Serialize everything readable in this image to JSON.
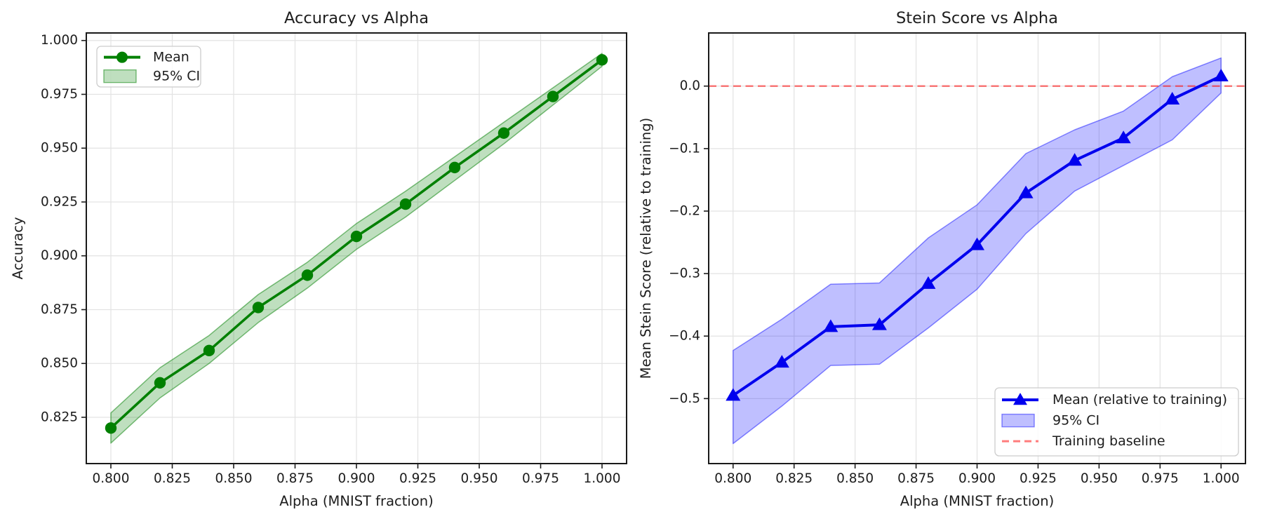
{
  "figure": {
    "background": "#ffffff",
    "description": "Two side-by-side matplotlib line charts with confidence bands"
  },
  "chart_data": [
    {
      "type": "line",
      "title": "Accuracy vs Alpha",
      "xlabel": "Alpha (MNIST fraction)",
      "ylabel": "Accuracy",
      "xlim": [
        0.79,
        1.01
      ],
      "ylim": [
        0.8035,
        1.0035
      ],
      "grid": true,
      "x": [
        0.8,
        0.82,
        0.84,
        0.86,
        0.88,
        0.9,
        0.92,
        0.94,
        0.96,
        0.98,
        1.0
      ],
      "series": [
        {
          "name": "Mean",
          "marker": "circle",
          "values": [
            0.82,
            0.841,
            0.856,
            0.876,
            0.891,
            0.909,
            0.924,
            0.941,
            0.957,
            0.974,
            0.991
          ]
        }
      ],
      "ci": {
        "name": "95% CI",
        "upper": [
          0.827,
          0.848,
          0.863,
          0.882,
          0.897,
          0.915,
          0.93,
          0.946,
          0.962,
          0.978,
          0.994
        ],
        "lower": [
          0.813,
          0.834,
          0.85,
          0.869,
          0.885,
          0.903,
          0.918,
          0.935,
          0.952,
          0.97,
          0.988
        ]
      },
      "xticks": {
        "values": [
          0.8,
          0.825,
          0.85,
          0.875,
          0.9,
          0.925,
          0.95,
          0.975,
          1.0
        ],
        "labels": [
          "0.800",
          "0.825",
          "0.850",
          "0.875",
          "0.900",
          "0.925",
          "0.950",
          "0.975",
          "1.000"
        ]
      },
      "yticks": {
        "values": [
          0.825,
          0.85,
          0.875,
          0.9,
          0.925,
          0.95,
          0.975,
          1.0
        ],
        "labels": [
          "0.825",
          "0.850",
          "0.875",
          "0.900",
          "0.925",
          "0.950",
          "0.975",
          "1.000"
        ]
      },
      "legend": {
        "position": "upper-left",
        "items": [
          {
            "type": "line-marker",
            "label": "Mean"
          },
          {
            "type": "patch",
            "label": "95% CI"
          }
        ]
      },
      "colors": {
        "line": "#008000",
        "band_fill": "rgba(0,128,0,0.25)",
        "band_edge": "rgba(0,128,0,0.5)"
      }
    },
    {
      "type": "line",
      "title": "Stein Score vs Alpha",
      "xlabel": "Alpha (MNIST fraction)",
      "ylabel": "Mean Stein Score (relative to training)",
      "xlim": [
        0.79,
        1.01
      ],
      "ylim": [
        -0.604,
        0.085
      ],
      "grid": true,
      "x": [
        0.8,
        0.82,
        0.84,
        0.86,
        0.88,
        0.9,
        0.92,
        0.94,
        0.96,
        0.98,
        1.0
      ],
      "series": [
        {
          "name": "Mean (relative to training)",
          "marker": "triangle",
          "values": [
            -0.495,
            -0.442,
            -0.385,
            -0.382,
            -0.316,
            -0.254,
            -0.171,
            -0.119,
            -0.083,
            -0.021,
            0.016
          ]
        }
      ],
      "ci": {
        "name": "95% CI",
        "upper": [
          -0.423,
          -0.373,
          -0.317,
          -0.315,
          -0.243,
          -0.19,
          -0.108,
          -0.07,
          -0.04,
          0.015,
          0.045
        ],
        "lower": [
          -0.572,
          -0.512,
          -0.447,
          -0.445,
          -0.387,
          -0.325,
          -0.236,
          -0.168,
          -0.127,
          -0.086,
          -0.011
        ]
      },
      "baseline": {
        "label": "Training baseline",
        "value": 0.0,
        "color": "rgba(255,30,30,0.58)"
      },
      "xticks": {
        "values": [
          0.8,
          0.825,
          0.85,
          0.875,
          0.9,
          0.925,
          0.95,
          0.975,
          1.0
        ],
        "labels": [
          "0.800",
          "0.825",
          "0.850",
          "0.875",
          "0.900",
          "0.925",
          "0.950",
          "0.975",
          "1.000"
        ]
      },
      "yticks": {
        "values": [
          0.0,
          -0.1,
          -0.2,
          -0.3,
          -0.4,
          -0.5
        ],
        "labels": [
          "0.0",
          "−0.1",
          "−0.2",
          "−0.3",
          "−0.4",
          "−0.5"
        ]
      },
      "legend": {
        "position": "lower-right",
        "items": [
          {
            "type": "line-marker",
            "label": "Mean (relative to training)"
          },
          {
            "type": "patch",
            "label": "95% CI"
          },
          {
            "type": "dash",
            "label": "Training baseline"
          }
        ]
      },
      "colors": {
        "line": "#0000ee",
        "band_fill": "rgba(0,0,255,0.25)",
        "band_edge": "rgba(0,0,255,0.45)"
      }
    }
  ]
}
